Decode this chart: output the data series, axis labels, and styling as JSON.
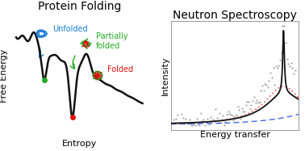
{
  "title_left": "Protein Folding",
  "title_right": "Neutron Spectroscopy",
  "xlabel_left": "Entropy",
  "ylabel_left": "Free Energy",
  "xlabel_right": "Energy transfer",
  "ylabel_right": "Intensity",
  "bg_color": "#ffffff",
  "title_fontsize": 10,
  "label_fontsize": 8,
  "annotation_fontsize": 7,
  "unfolded_color": "#1a7fd4",
  "partially_folded_color": "#22aa22",
  "folded_color": "#dd1111",
  "curve_color": "#111111",
  "scatter_color": "#888888",
  "fit_color": "#111111",
  "blue_dashed_color": "#3355ee",
  "red_dotted_color": "#ff4444"
}
